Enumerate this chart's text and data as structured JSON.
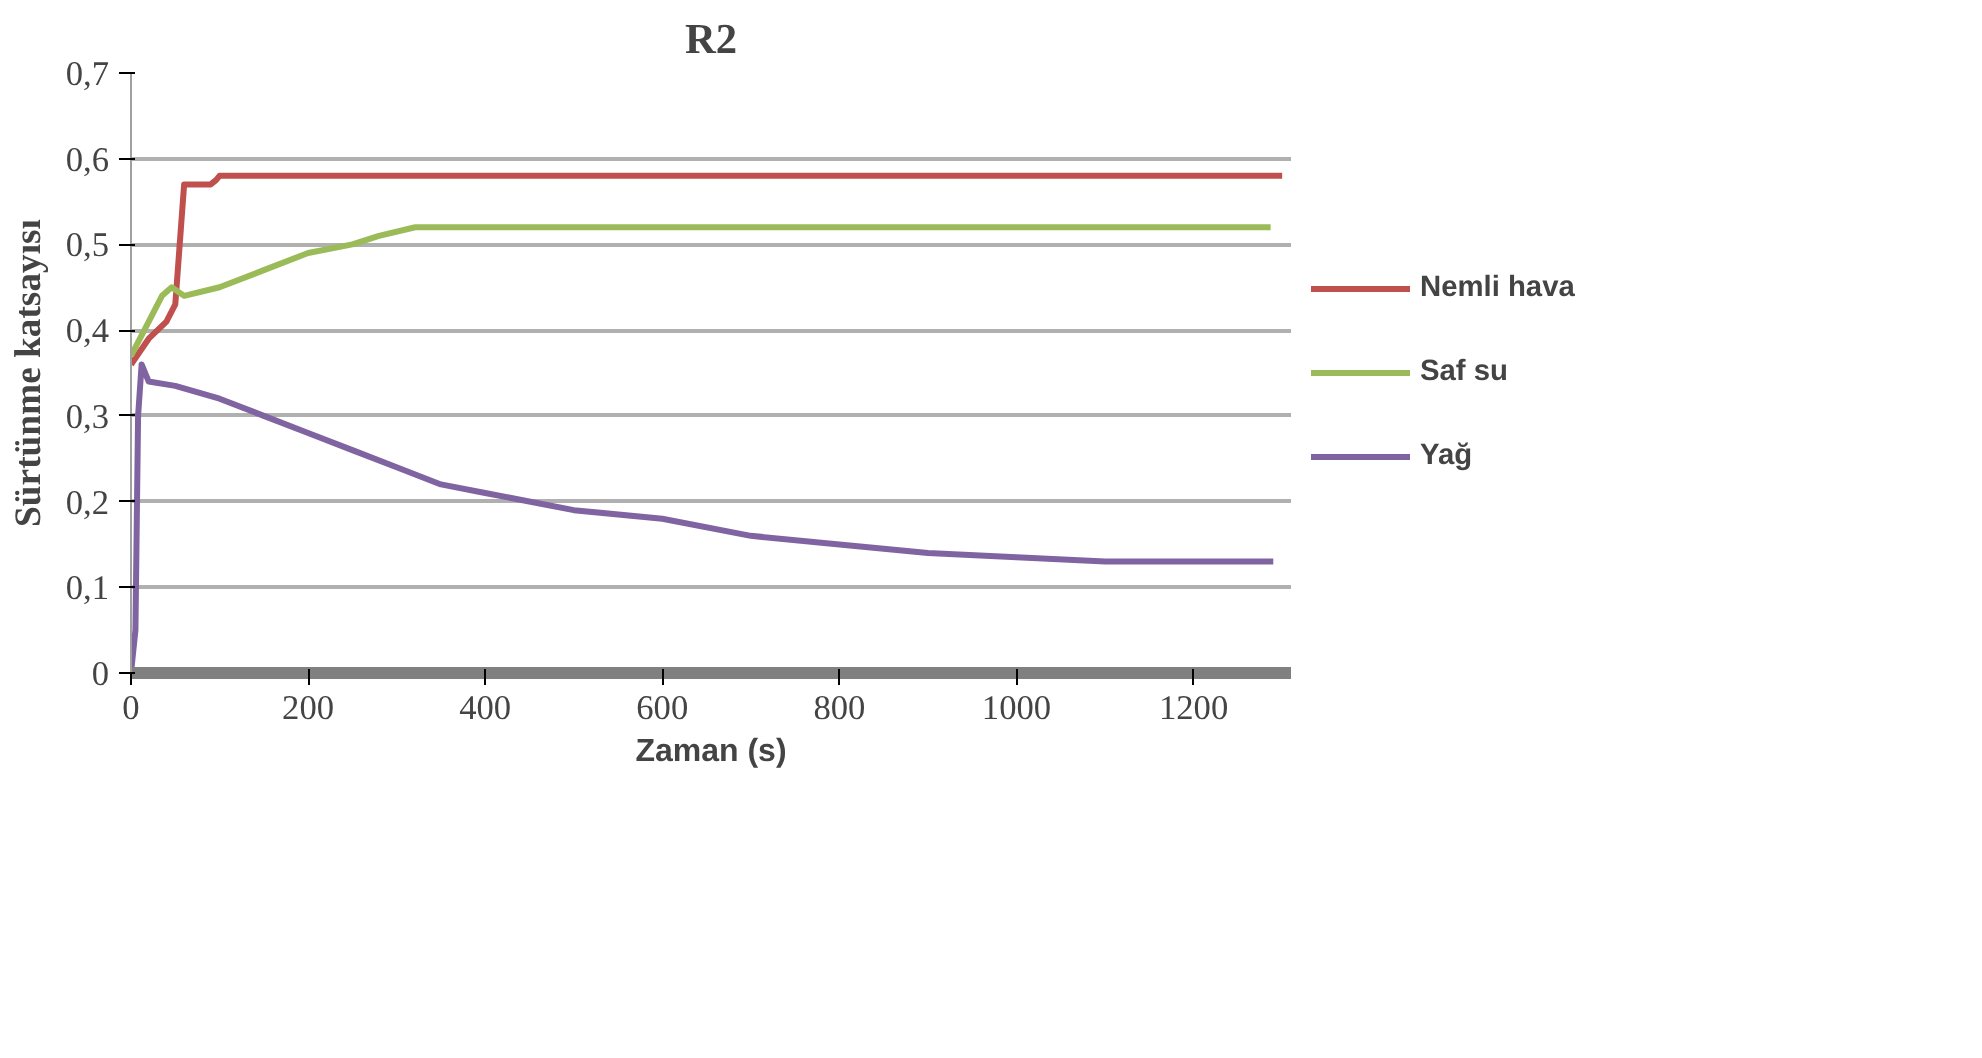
{
  "chart_data": {
    "type": "line",
    "title": "R2",
    "xlabel": "Zaman (s)",
    "ylabel": "Sürtünme katsayısı",
    "xlim": [
      0,
      1310
    ],
    "ylim": [
      0,
      0.7
    ],
    "xticks": [
      0,
      200,
      400,
      600,
      800,
      1000,
      1200
    ],
    "yticks": [
      {
        "value": 0,
        "label": "0"
      },
      {
        "value": 0.1,
        "label": "0,1"
      },
      {
        "value": 0.2,
        "label": "0,2"
      },
      {
        "value": 0.3,
        "label": "0,3"
      },
      {
        "value": 0.4,
        "label": "0,4"
      },
      {
        "value": 0.5,
        "label": "0,5"
      },
      {
        "value": 0.6,
        "label": "0,6"
      },
      {
        "value": 0.7,
        "label": "0,7"
      }
    ],
    "grid": "y",
    "legend": "right",
    "marker": "none",
    "line_style": "solid",
    "series": [
      {
        "name": "Nemli hava",
        "color": "#c0504d",
        "x": [
          0,
          20,
          40,
          50,
          55,
          60,
          90,
          96,
          100,
          400,
          800,
          1300
        ],
        "values": [
          0.36,
          0.39,
          0.41,
          0.43,
          0.5,
          0.57,
          0.57,
          0.575,
          0.58,
          0.58,
          0.58,
          0.58
        ]
      },
      {
        "name": "Saf su",
        "color": "#9bbb59",
        "x": [
          0,
          20,
          35,
          46,
          60,
          100,
          150,
          200,
          250,
          280,
          321,
          330,
          600,
          1000,
          1287
        ],
        "values": [
          0.37,
          0.41,
          0.44,
          0.45,
          0.44,
          0.45,
          0.47,
          0.49,
          0.5,
          0.51,
          0.52,
          0.52,
          0.52,
          0.52,
          0.52
        ]
      },
      {
        "name": "Yağ",
        "color": "#8064a2",
        "x": [
          0,
          5,
          8,
          12,
          20,
          50,
          100,
          150,
          200,
          250,
          300,
          350,
          400,
          500,
          600,
          700,
          800,
          900,
          1000,
          1100,
          1290
        ],
        "values": [
          0,
          0.05,
          0.3,
          0.36,
          0.34,
          0.335,
          0.32,
          0.3,
          0.28,
          0.26,
          0.24,
          0.22,
          0.21,
          0.19,
          0.18,
          0.16,
          0.15,
          0.14,
          0.135,
          0.13,
          0.13
        ]
      }
    ]
  }
}
